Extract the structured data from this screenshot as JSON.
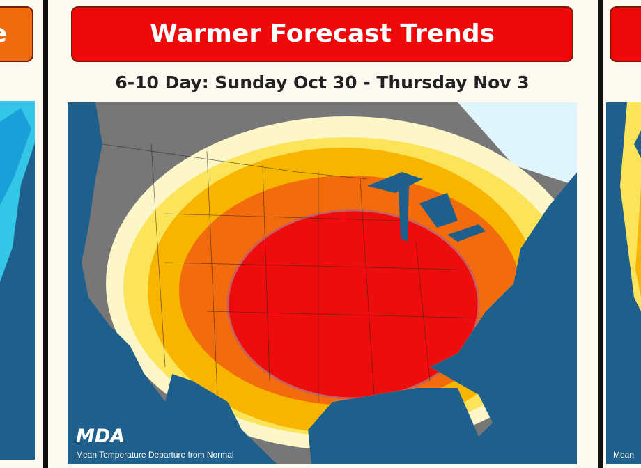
{
  "left_card": {
    "title": "e"
  },
  "main_card": {
    "title": "Warmer Forecast Trends",
    "subtitle": "6-10 Day: Sunday Oct 30 - Thursday Nov 3",
    "logo": "MDA",
    "caption": "Mean Temperature Departure from Normal"
  },
  "right_card": {
    "caption": "Mean"
  }
}
